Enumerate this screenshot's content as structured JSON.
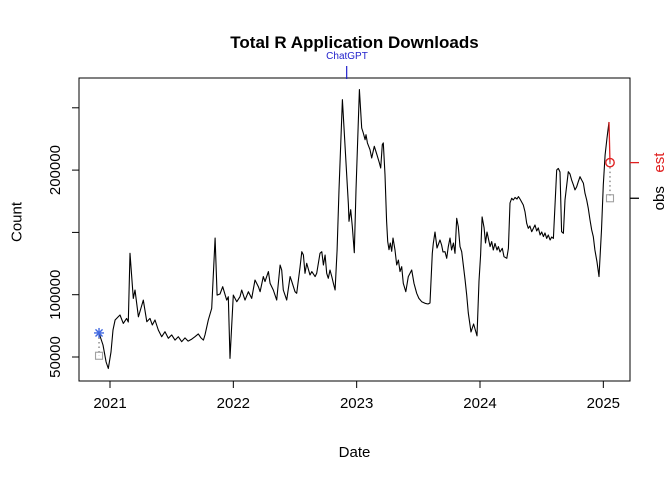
{
  "title": "Total R Application Downloads",
  "annotation": {
    "label": "ChatGPT",
    "date": 2022.919,
    "color": "#2222CC"
  },
  "axes": {
    "x": {
      "label": "Date",
      "ticks": [
        {
          "value": 2021,
          "label": "2021"
        },
        {
          "value": 2022,
          "label": "2022"
        },
        {
          "value": 2023,
          "label": "2023"
        },
        {
          "value": 2024,
          "label": "2024"
        },
        {
          "value": 2025,
          "label": "2025"
        }
      ]
    },
    "y": {
      "label": "Count",
      "ticks": [
        {
          "value": 50000,
          "label": "50000"
        },
        {
          "value": 100000,
          "label": "100000"
        },
        {
          "value": 150000,
          "label": ""
        },
        {
          "value": 200000,
          "label": "200000"
        },
        {
          "value": 250000,
          "label": ""
        }
      ]
    }
  },
  "right_axis": {
    "ticks": [
      {
        "label": "est",
        "value": 206000,
        "color": "#E02020"
      },
      {
        "label": "obs",
        "value": 177400,
        "color": "#000000"
      }
    ]
  },
  "chart_data": {
    "type": "line",
    "title": "Total R Application Downloads",
    "xlabel": "Date",
    "ylabel": "Count",
    "x_range": [
      2020.75,
      2025.22
    ],
    "y_range": [
      30700,
      273900
    ],
    "grid": false,
    "legend": "none",
    "line_color": "#000000",
    "series": [
      {
        "name": "weekly-downloads",
        "color": "#000000",
        "points": [
          [
            2020.911,
            69300
          ],
          [
            2020.943,
            59600
          ],
          [
            2020.968,
            46000
          ],
          [
            2020.986,
            40800
          ],
          [
            2021.008,
            54000
          ],
          [
            2021.024,
            71700
          ],
          [
            2021.041,
            79700
          ],
          [
            2021.065,
            82100
          ],
          [
            2021.081,
            83700
          ],
          [
            2021.108,
            77000
          ],
          [
            2021.135,
            81000
          ],
          [
            2021.148,
            78100
          ],
          [
            2021.162,
            133200
          ],
          [
            2021.189,
            97000
          ],
          [
            2021.203,
            103800
          ],
          [
            2021.23,
            82300
          ],
          [
            2021.251,
            89300
          ],
          [
            2021.27,
            95700
          ],
          [
            2021.298,
            78300
          ],
          [
            2021.324,
            81000
          ],
          [
            2021.343,
            75700
          ],
          [
            2021.365,
            79700
          ],
          [
            2021.392,
            71700
          ],
          [
            2021.419,
            66300
          ],
          [
            2021.446,
            70300
          ],
          [
            2021.473,
            65000
          ],
          [
            2021.5,
            67700
          ],
          [
            2021.527,
            63600
          ],
          [
            2021.554,
            66300
          ],
          [
            2021.581,
            62300
          ],
          [
            2021.608,
            65300
          ],
          [
            2021.633,
            62800
          ],
          [
            2021.663,
            64400
          ],
          [
            2021.689,
            66300
          ],
          [
            2021.716,
            68500
          ],
          [
            2021.738,
            65300
          ],
          [
            2021.757,
            63600
          ],
          [
            2021.77,
            67700
          ],
          [
            2021.797,
            79700
          ],
          [
            2021.825,
            89000
          ],
          [
            2021.852,
            145500
          ],
          [
            2021.868,
            99700
          ],
          [
            2021.892,
            100600
          ],
          [
            2021.914,
            106400
          ],
          [
            2021.946,
            95700
          ],
          [
            2021.959,
            98400
          ],
          [
            2021.973,
            48900
          ],
          [
            2022.0,
            99700
          ],
          [
            2022.028,
            94400
          ],
          [
            2022.054,
            98400
          ],
          [
            2022.068,
            103800
          ],
          [
            2022.095,
            95700
          ],
          [
            2022.122,
            102400
          ],
          [
            2022.149,
            97000
          ],
          [
            2022.176,
            111800
          ],
          [
            2022.203,
            106400
          ],
          [
            2022.217,
            102400
          ],
          [
            2022.243,
            114500
          ],
          [
            2022.257,
            110500
          ],
          [
            2022.284,
            118500
          ],
          [
            2022.298,
            109100
          ],
          [
            2022.324,
            103800
          ],
          [
            2022.352,
            95700
          ],
          [
            2022.379,
            123800
          ],
          [
            2022.392,
            119800
          ],
          [
            2022.405,
            103800
          ],
          [
            2022.433,
            95700
          ],
          [
            2022.46,
            114500
          ],
          [
            2022.474,
            110500
          ],
          [
            2022.5,
            102400
          ],
          [
            2022.514,
            101100
          ],
          [
            2022.541,
            122500
          ],
          [
            2022.555,
            134500
          ],
          [
            2022.568,
            131900
          ],
          [
            2022.581,
            117200
          ],
          [
            2022.595,
            125200
          ],
          [
            2022.622,
            115800
          ],
          [
            2022.636,
            118500
          ],
          [
            2022.663,
            114500
          ],
          [
            2022.676,
            117200
          ],
          [
            2022.703,
            133200
          ],
          [
            2022.717,
            134500
          ],
          [
            2022.73,
            123800
          ],
          [
            2022.744,
            131900
          ],
          [
            2022.757,
            117200
          ],
          [
            2022.77,
            113200
          ],
          [
            2022.784,
            119800
          ],
          [
            2022.798,
            114500
          ],
          [
            2022.811,
            109100
          ],
          [
            2022.825,
            103800
          ],
          [
            2022.841,
            135900
          ],
          [
            2022.857,
            184000
          ],
          [
            2022.884,
            256500
          ],
          [
            2022.933,
            172200
          ],
          [
            2022.938,
            158900
          ],
          [
            2022.952,
            168200
          ],
          [
            2022.965,
            154900
          ],
          [
            2022.981,
            133700
          ],
          [
            2022.995,
            184000
          ],
          [
            2023.022,
            264600
          ],
          [
            2023.041,
            233800
          ],
          [
            2023.054,
            229800
          ],
          [
            2023.068,
            224400
          ],
          [
            2023.076,
            228400
          ],
          [
            2023.087,
            221800
          ],
          [
            2023.108,
            216400
          ],
          [
            2023.122,
            209700
          ],
          [
            2023.143,
            219100
          ],
          [
            2023.165,
            212200
          ],
          [
            2023.184,
            205700
          ],
          [
            2023.195,
            201700
          ],
          [
            2023.208,
            220400
          ],
          [
            2023.216,
            221800
          ],
          [
            2023.23,
            196300
          ],
          [
            2023.243,
            158900
          ],
          [
            2023.252,
            142800
          ],
          [
            2023.262,
            136100
          ],
          [
            2023.273,
            141500
          ],
          [
            2023.284,
            134800
          ],
          [
            2023.295,
            145500
          ],
          [
            2023.311,
            135900
          ],
          [
            2023.325,
            123800
          ],
          [
            2023.338,
            127800
          ],
          [
            2023.351,
            118500
          ],
          [
            2023.365,
            122500
          ],
          [
            2023.378,
            109100
          ],
          [
            2023.398,
            102400
          ],
          [
            2023.419,
            114500
          ],
          [
            2023.446,
            119800
          ],
          [
            2023.465,
            109100
          ],
          [
            2023.487,
            101100
          ],
          [
            2023.505,
            97000
          ],
          [
            2023.527,
            94400
          ],
          [
            2023.554,
            93100
          ],
          [
            2023.578,
            92500
          ],
          [
            2023.595,
            93300
          ],
          [
            2023.613,
            133200
          ],
          [
            2023.621,
            141200
          ],
          [
            2023.635,
            150300
          ],
          [
            2023.651,
            137500
          ],
          [
            2023.676,
            143900
          ],
          [
            2023.689,
            139900
          ],
          [
            2023.7,
            134300
          ],
          [
            2023.716,
            134500
          ],
          [
            2023.73,
            129200
          ],
          [
            2023.743,
            138600
          ],
          [
            2023.757,
            145500
          ],
          [
            2023.77,
            135900
          ],
          [
            2023.784,
            141500
          ],
          [
            2023.797,
            133200
          ],
          [
            2023.811,
            161300
          ],
          [
            2023.824,
            154600
          ],
          [
            2023.838,
            138600
          ],
          [
            2023.852,
            134500
          ],
          [
            2023.865,
            123800
          ],
          [
            2023.879,
            111800
          ],
          [
            2023.892,
            99700
          ],
          [
            2023.905,
            85300
          ],
          [
            2023.927,
            70100
          ],
          [
            2023.948,
            76500
          ],
          [
            2023.976,
            66900
          ],
          [
            2023.992,
            111000
          ],
          [
            2024.005,
            131900
          ],
          [
            2024.017,
            162400
          ],
          [
            2024.033,
            153600
          ],
          [
            2024.045,
            141500
          ],
          [
            2024.057,
            150300
          ],
          [
            2024.082,
            138600
          ],
          [
            2024.095,
            142600
          ],
          [
            2024.108,
            135900
          ],
          [
            2024.122,
            141200
          ],
          [
            2024.138,
            135900
          ],
          [
            2024.149,
            138600
          ],
          [
            2024.162,
            134300
          ],
          [
            2024.181,
            137200
          ],
          [
            2024.195,
            130500
          ],
          [
            2024.217,
            129200
          ],
          [
            2024.23,
            137200
          ],
          [
            2024.243,
            173600
          ],
          [
            2024.257,
            177400
          ],
          [
            2024.27,
            176000
          ],
          [
            2024.284,
            178000
          ],
          [
            2024.3,
            176800
          ],
          [
            2024.311,
            178700
          ],
          [
            2024.324,
            176800
          ],
          [
            2024.351,
            172000
          ],
          [
            2024.365,
            166600
          ],
          [
            2024.379,
            157300
          ],
          [
            2024.392,
            153300
          ],
          [
            2024.405,
            155100
          ],
          [
            2024.419,
            150600
          ],
          [
            2024.446,
            155900
          ],
          [
            2024.46,
            151100
          ],
          [
            2024.473,
            153600
          ],
          [
            2024.487,
            147900
          ],
          [
            2024.5,
            150300
          ],
          [
            2024.514,
            146600
          ],
          [
            2024.527,
            149500
          ],
          [
            2024.541,
            145200
          ],
          [
            2024.554,
            147900
          ],
          [
            2024.568,
            143900
          ],
          [
            2024.581,
            146300
          ],
          [
            2024.595,
            145200
          ],
          [
            2024.622,
            200100
          ],
          [
            2024.635,
            201400
          ],
          [
            2024.649,
            198500
          ],
          [
            2024.662,
            150600
          ],
          [
            2024.676,
            149300
          ],
          [
            2024.689,
            176000
          ],
          [
            2024.716,
            198700
          ],
          [
            2024.73,
            196900
          ],
          [
            2024.743,
            192100
          ],
          [
            2024.757,
            188100
          ],
          [
            2024.77,
            184100
          ],
          [
            2024.784,
            186700
          ],
          [
            2024.797,
            190700
          ],
          [
            2024.811,
            194700
          ],
          [
            2024.824,
            192100
          ],
          [
            2024.838,
            189400
          ],
          [
            2024.851,
            181400
          ],
          [
            2024.865,
            176000
          ],
          [
            2024.878,
            169300
          ],
          [
            2024.892,
            160000
          ],
          [
            2024.906,
            151900
          ],
          [
            2024.919,
            146600
          ],
          [
            2024.932,
            135900
          ],
          [
            2024.949,
            126300
          ],
          [
            2024.965,
            114500
          ],
          [
            2024.985,
            151900
          ],
          [
            2025.0,
            188100
          ],
          [
            2025.014,
            212100
          ],
          [
            2025.03,
            225800
          ],
          [
            2025.046,
            238600
          ]
        ]
      }
    ],
    "forecast_segment": {
      "from": [
        2025.046,
        238600
      ],
      "to": [
        2025.054,
        206000
      ],
      "color": "#E02020"
    },
    "markers": [
      {
        "name": "start-estimate",
        "date": 2020.911,
        "value": 69300,
        "symbol": "asterisk",
        "color": "#4169E1"
      },
      {
        "name": "start-observed",
        "date": 2020.911,
        "value": 51000,
        "symbol": "square",
        "color": "#A0A0A0"
      },
      {
        "name": "end-estimate",
        "date": 2025.054,
        "value": 206000,
        "symbol": "circle",
        "color": "#E02020"
      },
      {
        "name": "end-observed",
        "date": 2025.054,
        "value": 177400,
        "symbol": "square",
        "color": "#A0A0A0"
      }
    ],
    "connectors": [
      {
        "x": 2020.911,
        "from": 69300,
        "to": 51000
      },
      {
        "x": 2025.054,
        "from": 206000,
        "to": 177400
      }
    ]
  }
}
